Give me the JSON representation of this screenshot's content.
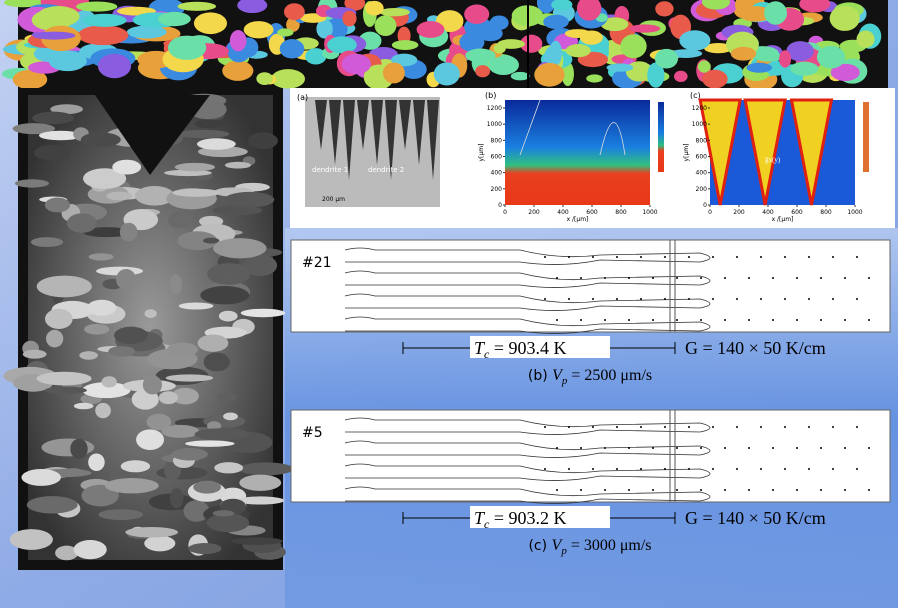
{
  "panels": [
    {
      "label": "(a)",
      "annotations": [
        "dendrite 1",
        "dendrite 2",
        "200 μm"
      ]
    },
    {
      "label": "(b)",
      "xlabel": "x /[μm]",
      "ylabel": "y[μm]",
      "xticks": [
        0,
        200,
        400,
        600,
        800,
        1000
      ],
      "yticks": [
        0,
        200,
        400,
        600,
        800,
        1000,
        1200
      ]
    },
    {
      "label": "(c)",
      "xlabel": "x /[μm]",
      "ylabel": "y[μm]",
      "xticks": [
        0,
        200,
        400,
        600,
        800,
        1000
      ],
      "yticks": [
        0,
        200,
        400,
        600,
        800,
        1000,
        1200
      ],
      "annotation": "g̅x(y)"
    }
  ],
  "simulations": [
    {
      "id": "#21",
      "tc_symbol": "T",
      "tc_sub": "c",
      "tc_value": " = 903.4 K",
      "gradient": "G = 140 × 50 K/cm",
      "caption_prefix": "(b) ",
      "vp_symbol": "V",
      "vp_sub": "p",
      "vp_value": " = 2500 μm/s"
    },
    {
      "id": "#5",
      "tc_symbol": "T",
      "tc_sub": "c",
      "tc_value": " = 903.2 K",
      "gradient": "G = 140 × 50 K/cm",
      "caption_prefix": "(c) ",
      "vp_symbol": "V",
      "vp_sub": "p",
      "vp_value": " = 3000 μm/s"
    }
  ]
}
